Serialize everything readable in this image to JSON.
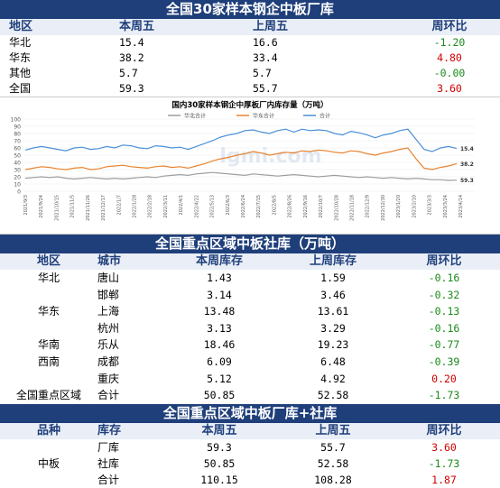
{
  "section1": {
    "title": "全国30家样本钢企中板厂库",
    "headers": [
      "地区",
      "本周五",
      "上周五",
      "周环比"
    ],
    "rows": [
      {
        "region": "华北",
        "this_week": "15.4",
        "last_week": "16.6",
        "change": "-1.20",
        "sign": "neg"
      },
      {
        "region": "华东",
        "this_week": "38.2",
        "last_week": "33.4",
        "change": "4.80",
        "sign": "pos"
      },
      {
        "region": "其他",
        "this_week": "5.7",
        "last_week": "5.7",
        "change": "-0.00",
        "sign": "zero"
      },
      {
        "region": "全国",
        "this_week": "59.3",
        "last_week": "55.7",
        "change": "3.60",
        "sign": "pos"
      }
    ]
  },
  "chart_data": {
    "type": "line",
    "title": "国内30家样本钢企中厚板厂内库存量（万吨）",
    "legend": [
      "华北合计",
      "华东合计",
      "合计"
    ],
    "legend_position": "top",
    "ylim": [
      0,
      100
    ],
    "yticks": [
      "0",
      "10",
      "20",
      "30",
      "40",
      "50",
      "60",
      "70",
      "80",
      "90",
      "100"
    ],
    "xticks": [
      "2021/9/3",
      "2021/9/24",
      "2021/10/15",
      "2021/11/5",
      "2021/11/26",
      "2021/12/17",
      "2022/1/7",
      "2022/1/28",
      "2022/2/18",
      "2022/3/11",
      "2022/4/1",
      "2022/4/22",
      "2022/5/13",
      "2022/6/3",
      "2022/6/24",
      "2022/7/15",
      "2022/8/5",
      "2022/8/26",
      "2022/9/16",
      "2022/10/7",
      "2022/10/28",
      "2022/11/18",
      "2022/12/9",
      "2022/12/30",
      "2023/1/20",
      "2023/2/10",
      "2023/3/3",
      "2023/3/24",
      "2023/4/14"
    ],
    "series": [
      {
        "name": "华北合计",
        "color": "#9e9e9e",
        "values": [
          18,
          19,
          20,
          19,
          20,
          18,
          17,
          18,
          19,
          18,
          17,
          18,
          17,
          18,
          19,
          20,
          19,
          21,
          22,
          23,
          22,
          24,
          25,
          26,
          25,
          24,
          23,
          22,
          24,
          23,
          22,
          21,
          22,
          23,
          22,
          21,
          20,
          21,
          22,
          21,
          20,
          19,
          20,
          19,
          18,
          19,
          18,
          17,
          18,
          17,
          16,
          16,
          15,
          15.4
        ]
      },
      {
        "name": "华东合计",
        "color": "#e8832f",
        "values": [
          30,
          32,
          34,
          33,
          31,
          30,
          32,
          33,
          30,
          31,
          34,
          35,
          36,
          34,
          33,
          32,
          34,
          35,
          33,
          34,
          32,
          35,
          38,
          42,
          45,
          47,
          50,
          52,
          55,
          53,
          50,
          52,
          54,
          53,
          56,
          55,
          57,
          56,
          54,
          53,
          56,
          55,
          52,
          50,
          53,
          55,
          58,
          60,
          45,
          32,
          30,
          33,
          35,
          38.2
        ]
      },
      {
        "name": "合计",
        "color": "#4a90d9",
        "values": [
          57,
          60,
          62,
          60,
          58,
          56,
          60,
          61,
          58,
          59,
          62,
          60,
          64,
          63,
          60,
          59,
          63,
          62,
          60,
          61,
          58,
          62,
          66,
          70,
          75,
          78,
          80,
          84,
          85,
          82,
          80,
          84,
          86,
          82,
          86,
          84,
          85,
          84,
          80,
          78,
          83,
          81,
          78,
          74,
          78,
          80,
          84,
          86,
          72,
          58,
          55,
          60,
          62,
          59.3
        ]
      }
    ],
    "end_labels": [
      "59.3",
      "38.2",
      "15.4"
    ],
    "watermark": "lgmi.com"
  },
  "section2": {
    "title": "全国重点区域中板社库（万吨）",
    "headers": [
      "地区",
      "城市",
      "本周库存",
      "上周库存",
      "周环比"
    ],
    "rows": [
      {
        "region": "华北",
        "city": "唐山",
        "this_week": "1.43",
        "last_week": "1.59",
        "change": "-0.16",
        "sign": "neg"
      },
      {
        "region": "",
        "city": "邯郸",
        "this_week": "3.14",
        "last_week": "3.46",
        "change": "-0.32",
        "sign": "neg"
      },
      {
        "region": "华东",
        "city": "上海",
        "this_week": "13.48",
        "last_week": "13.61",
        "change": "-0.13",
        "sign": "neg"
      },
      {
        "region": "",
        "city": "杭州",
        "this_week": "3.13",
        "last_week": "3.29",
        "change": "-0.16",
        "sign": "neg"
      },
      {
        "region": "华南",
        "city": "乐从",
        "this_week": "18.46",
        "last_week": "19.23",
        "change": "-0.77",
        "sign": "neg"
      },
      {
        "region": "西南",
        "city": "成都",
        "this_week": "6.09",
        "last_week": "6.48",
        "change": "-0.39",
        "sign": "neg"
      },
      {
        "region": "",
        "city": "重庆",
        "this_week": "5.12",
        "last_week": "4.92",
        "change": "0.20",
        "sign": "pos"
      },
      {
        "region": "全国重点区域",
        "city": "合计",
        "this_week": "50.85",
        "last_week": "52.58",
        "change": "-1.73",
        "sign": "neg"
      }
    ]
  },
  "section3": {
    "title": "全国重点区域中板厂库+社库",
    "headers": [
      "品种",
      "库存",
      "本周五",
      "上周五",
      "周环比"
    ],
    "variety": "中板",
    "rows": [
      {
        "stock": "厂库",
        "this_week": "59.3",
        "last_week": "55.7",
        "change": "3.60",
        "sign": "pos"
      },
      {
        "stock": "社库",
        "this_week": "50.85",
        "last_week": "52.58",
        "change": "-1.73",
        "sign": "neg"
      },
      {
        "stock": "合计",
        "this_week": "110.15",
        "last_week": "108.28",
        "change": "1.87",
        "sign": "pos"
      }
    ]
  }
}
